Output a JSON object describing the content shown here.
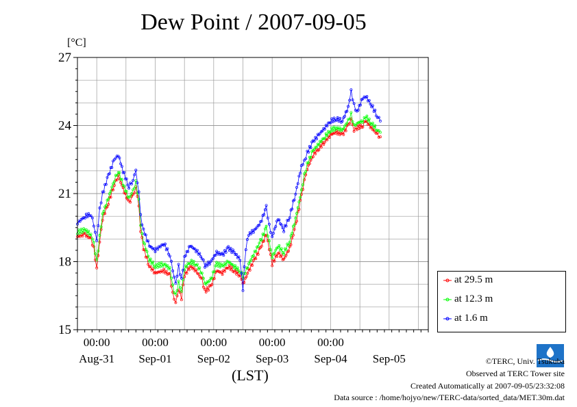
{
  "title": "Dew Point / 2007-09-05",
  "unit_label": "[°C]",
  "xaxis_label": "(LST)",
  "credits": {
    "copyright": "©TERC, Univ. Tsukuba",
    "observed": "Observed at TERC Tower site",
    "created": "Created Automatically at 2007-09-05/23:32:08",
    "source": "Data source : /home/hojyo/new/TERC-data/sorted_data/MET.30m.dat"
  },
  "colors": {
    "s1": "#ff0000",
    "s2": "#00ff00",
    "s3": "#0000ff",
    "grid": "#999999"
  },
  "chart_data": {
    "type": "line",
    "x_unit": "days since Aug-30 00:00 LST",
    "xlim": [
      0.67,
      6.67
    ],
    "ylim": [
      15,
      27
    ],
    "yticks": [
      15,
      18,
      21,
      24,
      27
    ],
    "time_ticks": [
      "00:00",
      "00:00",
      "00:00",
      "00:00",
      "00:00"
    ],
    "day_labels": [
      "Aug-31",
      "Sep-01",
      "Sep-02",
      "Sep-03",
      "Sep-04",
      "Sep-05"
    ],
    "grid": true,
    "legend_position": "right-bottom",
    "series": [
      {
        "name": "at 29.5 m",
        "color": "#ff0000",
        "points": [
          [
            0.67,
            19.1
          ],
          [
            0.8,
            19.2
          ],
          [
            0.9,
            19.0
          ],
          [
            0.95,
            18.6
          ],
          [
            1.0,
            17.7
          ],
          [
            1.05,
            18.9
          ],
          [
            1.1,
            19.9
          ],
          [
            1.2,
            20.6
          ],
          [
            1.3,
            21.4
          ],
          [
            1.37,
            21.8
          ],
          [
            1.45,
            21.2
          ],
          [
            1.55,
            20.6
          ],
          [
            1.62,
            20.9
          ],
          [
            1.67,
            21.3
          ],
          [
            1.72,
            20.5
          ],
          [
            1.75,
            19.4
          ],
          [
            1.8,
            18.6
          ],
          [
            1.9,
            17.8
          ],
          [
            2.0,
            17.5
          ],
          [
            2.15,
            17.6
          ],
          [
            2.25,
            17.4
          ],
          [
            2.3,
            16.6
          ],
          [
            2.35,
            16.2
          ],
          [
            2.4,
            16.8
          ],
          [
            2.45,
            16.4
          ],
          [
            2.5,
            17.4
          ],
          [
            2.6,
            17.8
          ],
          [
            2.7,
            17.6
          ],
          [
            2.8,
            17.2
          ],
          [
            2.85,
            16.7
          ],
          [
            2.95,
            16.9
          ],
          [
            3.05,
            17.6
          ],
          [
            3.15,
            17.5
          ],
          [
            3.25,
            17.8
          ],
          [
            3.35,
            17.6
          ],
          [
            3.45,
            17.4
          ],
          [
            3.5,
            17.0
          ],
          [
            3.6,
            17.6
          ],
          [
            3.7,
            18.1
          ],
          [
            3.8,
            18.6
          ],
          [
            3.9,
            19.2
          ],
          [
            3.95,
            18.6
          ],
          [
            4.0,
            17.9
          ],
          [
            4.1,
            18.4
          ],
          [
            4.2,
            18.1
          ],
          [
            4.3,
            18.6
          ],
          [
            4.4,
            19.6
          ],
          [
            4.5,
            20.9
          ],
          [
            4.55,
            21.6
          ],
          [
            4.6,
            22.1
          ],
          [
            4.7,
            22.7
          ],
          [
            4.8,
            23.0
          ],
          [
            4.9,
            23.3
          ],
          [
            5.0,
            23.6
          ],
          [
            5.1,
            23.7
          ],
          [
            5.2,
            23.6
          ],
          [
            5.3,
            24.0
          ],
          [
            5.35,
            24.3
          ],
          [
            5.4,
            23.8
          ],
          [
            5.45,
            23.9
          ],
          [
            5.55,
            24.0
          ],
          [
            5.6,
            24.2
          ],
          [
            5.7,
            23.9
          ],
          [
            5.8,
            23.6
          ],
          [
            5.85,
            23.5
          ]
        ]
      },
      {
        "name": "at 12.3 m",
        "color": "#00ff00",
        "points": [
          [
            0.67,
            19.3
          ],
          [
            0.8,
            19.4
          ],
          [
            0.9,
            19.2
          ],
          [
            0.95,
            18.8
          ],
          [
            1.0,
            18.0
          ],
          [
            1.05,
            19.1
          ],
          [
            1.1,
            20.1
          ],
          [
            1.2,
            20.8
          ],
          [
            1.3,
            21.6
          ],
          [
            1.37,
            22.0
          ],
          [
            1.45,
            21.4
          ],
          [
            1.55,
            20.8
          ],
          [
            1.62,
            21.1
          ],
          [
            1.67,
            21.5
          ],
          [
            1.72,
            20.7
          ],
          [
            1.75,
            19.6
          ],
          [
            1.8,
            18.9
          ],
          [
            1.9,
            18.1
          ],
          [
            2.0,
            17.8
          ],
          [
            2.15,
            17.9
          ],
          [
            2.25,
            17.7
          ],
          [
            2.3,
            16.9
          ],
          [
            2.35,
            16.5
          ],
          [
            2.4,
            17.1
          ],
          [
            2.45,
            16.7
          ],
          [
            2.5,
            17.7
          ],
          [
            2.6,
            18.0
          ],
          [
            2.7,
            17.9
          ],
          [
            2.8,
            17.5
          ],
          [
            2.85,
            17.0
          ],
          [
            2.95,
            17.2
          ],
          [
            3.05,
            17.9
          ],
          [
            3.15,
            17.8
          ],
          [
            3.25,
            18.0
          ],
          [
            3.35,
            17.8
          ],
          [
            3.45,
            17.6
          ],
          [
            3.5,
            17.3
          ],
          [
            3.6,
            17.9
          ],
          [
            3.7,
            18.4
          ],
          [
            3.8,
            18.9
          ],
          [
            3.9,
            19.5
          ],
          [
            3.95,
            18.9
          ],
          [
            4.0,
            18.2
          ],
          [
            4.1,
            18.7
          ],
          [
            4.2,
            18.4
          ],
          [
            4.3,
            18.9
          ],
          [
            4.4,
            19.9
          ],
          [
            4.5,
            21.1
          ],
          [
            4.55,
            21.8
          ],
          [
            4.6,
            22.3
          ],
          [
            4.7,
            22.9
          ],
          [
            4.8,
            23.2
          ],
          [
            4.9,
            23.5
          ],
          [
            5.0,
            23.8
          ],
          [
            5.1,
            23.9
          ],
          [
            5.2,
            23.8
          ],
          [
            5.3,
            24.2
          ],
          [
            5.35,
            24.5
          ],
          [
            5.4,
            24.0
          ],
          [
            5.45,
            24.1
          ],
          [
            5.55,
            24.2
          ],
          [
            5.6,
            24.4
          ],
          [
            5.7,
            24.1
          ],
          [
            5.8,
            23.8
          ],
          [
            5.85,
            23.7
          ]
        ]
      },
      {
        "name": "at 1.6 m",
        "color": "#0000ff",
        "points": [
          [
            0.67,
            19.7
          ],
          [
            0.8,
            20.0
          ],
          [
            0.9,
            20.1
          ],
          [
            0.95,
            19.6
          ],
          [
            1.0,
            18.9
          ],
          [
            1.05,
            20.3
          ],
          [
            1.1,
            21.0
          ],
          [
            1.2,
            21.8
          ],
          [
            1.3,
            22.5
          ],
          [
            1.37,
            22.7
          ],
          [
            1.45,
            22.0
          ],
          [
            1.55,
            21.3
          ],
          [
            1.62,
            21.6
          ],
          [
            1.67,
            22.0
          ],
          [
            1.72,
            21.0
          ],
          [
            1.75,
            20.0
          ],
          [
            1.8,
            19.4
          ],
          [
            1.9,
            18.7
          ],
          [
            2.0,
            18.5
          ],
          [
            2.15,
            18.8
          ],
          [
            2.25,
            18.3
          ],
          [
            2.3,
            17.6
          ],
          [
            2.35,
            17.0
          ],
          [
            2.4,
            17.8
          ],
          [
            2.45,
            17.2
          ],
          [
            2.5,
            18.2
          ],
          [
            2.6,
            18.7
          ],
          [
            2.7,
            18.5
          ],
          [
            2.8,
            18.2
          ],
          [
            2.85,
            17.8
          ],
          [
            2.95,
            18.0
          ],
          [
            3.05,
            18.4
          ],
          [
            3.15,
            18.3
          ],
          [
            3.25,
            18.6
          ],
          [
            3.35,
            18.4
          ],
          [
            3.45,
            18.1
          ],
          [
            3.5,
            16.8
          ],
          [
            3.55,
            18.6
          ],
          [
            3.6,
            19.2
          ],
          [
            3.7,
            19.4
          ],
          [
            3.8,
            19.7
          ],
          [
            3.9,
            20.4
          ],
          [
            3.95,
            19.6
          ],
          [
            4.0,
            19.1
          ],
          [
            4.1,
            19.9
          ],
          [
            4.2,
            19.4
          ],
          [
            4.3,
            20.0
          ],
          [
            4.4,
            21.0
          ],
          [
            4.5,
            22.2
          ],
          [
            4.55,
            22.4
          ],
          [
            4.6,
            22.8
          ],
          [
            4.7,
            23.3
          ],
          [
            4.8,
            23.6
          ],
          [
            4.9,
            23.9
          ],
          [
            5.0,
            24.2
          ],
          [
            5.1,
            24.3
          ],
          [
            5.2,
            24.2
          ],
          [
            5.3,
            24.8
          ],
          [
            5.35,
            25.5
          ],
          [
            5.4,
            24.9
          ],
          [
            5.45,
            24.6
          ],
          [
            5.55,
            25.2
          ],
          [
            5.6,
            25.3
          ],
          [
            5.7,
            24.9
          ],
          [
            5.8,
            24.4
          ],
          [
            5.85,
            24.2
          ]
        ]
      }
    ]
  }
}
